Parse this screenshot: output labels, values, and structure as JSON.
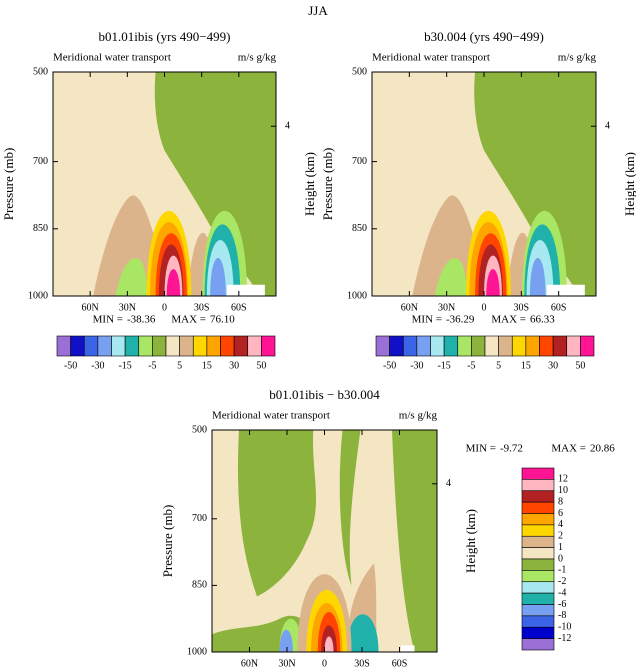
{
  "title": "JJA",
  "chart_data": [
    {
      "type": "contour",
      "title": "b01.01ibis (yrs 490−499)",
      "left_string": "Meridional water transport",
      "right_string": "m/s g/kg",
      "ylabel": "Pressure (mb)",
      "y2label": "Height (km)",
      "xlim": [
        90,
        -90
      ],
      "xticks": [
        {
          "value": 60,
          "label": "60N"
        },
        {
          "value": 30,
          "label": "30N"
        },
        0,
        {
          "value": -30,
          "label": "30S"
        },
        {
          "value": -60,
          "label": "60S"
        }
      ],
      "ylim": [
        1000,
        500
      ],
      "yticks": [
        500,
        700,
        850,
        1000
      ],
      "y2ticks": [
        4
      ],
      "min_label": "MIN =",
      "min": -38.36,
      "max_label": "MAX =",
      "max": {
        "value": 76.1,
        "label": "76.10"
      },
      "colorbar": {
        "colors": [
          "#9a6fd6",
          "#1010c8",
          "#3c64e6",
          "#78a0f0",
          "#a8e8f0",
          "#20b2aa",
          "#a8e664",
          "#8cb43c",
          "#f5e6c3",
          "#dcb48c",
          "#ffd700",
          "#ffa500",
          "#ff4500",
          "#b22222",
          "#ffb6c1",
          "#ff1493"
        ],
        "labels": [
          -50,
          -30,
          -15,
          -5,
          5,
          15,
          30,
          50
        ]
      }
    },
    {
      "type": "contour",
      "title": "b30.004 (yrs 490−499)",
      "left_string": "Meridional water transport",
      "right_string": "m/s g/kg",
      "ylabel": "Pressure (mb)",
      "y2label": "Height (km)",
      "xlim": [
        90,
        -90
      ],
      "xticks": [
        {
          "value": 60,
          "label": "60N"
        },
        {
          "value": 30,
          "label": "30N"
        },
        0,
        {
          "value": -30,
          "label": "30S"
        },
        {
          "value": -60,
          "label": "60S"
        }
      ],
      "ylim": [
        1000,
        500
      ],
      "yticks": [
        500,
        700,
        850,
        1000
      ],
      "y2ticks": [
        4
      ],
      "min_label": "MIN =",
      "min": -36.29,
      "max_label": "MAX =",
      "max": 66.33,
      "colorbar": {
        "colors": [
          "#9a6fd6",
          "#1010c8",
          "#3c64e6",
          "#78a0f0",
          "#a8e8f0",
          "#20b2aa",
          "#a8e664",
          "#8cb43c",
          "#f5e6c3",
          "#dcb48c",
          "#ffd700",
          "#ffa500",
          "#ff4500",
          "#b22222",
          "#ffb6c1",
          "#ff1493"
        ],
        "labels": [
          -50,
          -30,
          -15,
          -5,
          5,
          15,
          30,
          50
        ]
      }
    },
    {
      "type": "contour",
      "title": "b01.01ibis − b30.004",
      "left_string": "Meridional water transport",
      "right_string": "m/s g/kg",
      "ylabel": "Pressure (mb)",
      "y2label": "Height (km)",
      "xlim": [
        90,
        -90
      ],
      "xticks": [
        {
          "value": 60,
          "label": "60N"
        },
        {
          "value": 30,
          "label": "30N"
        },
        0,
        {
          "value": -30,
          "label": "30S"
        },
        {
          "value": -60,
          "label": "60S"
        }
      ],
      "ylim": [
        1000,
        500
      ],
      "yticks": [
        500,
        700,
        850,
        1000
      ],
      "y2ticks": [
        4
      ],
      "min_label": "MIN =",
      "min": -9.72,
      "max_label": "MAX =",
      "max": 20.86,
      "colorbar": {
        "colors": [
          "#ff1493",
          "#ffb6c1",
          "#b22222",
          "#ff4500",
          "#ffa500",
          "#ffd700",
          "#dcb48c",
          "#f5e6c3",
          "#8cb43c",
          "#a8e664",
          "#a8e8f0",
          "#20b2aa",
          "#78a0f0",
          "#3c64e6",
          "#0000cd",
          "#9a6fd6"
        ],
        "labels": [
          12,
          10,
          8,
          6,
          4,
          2,
          1,
          0,
          -1,
          -2,
          -4,
          -6,
          -8,
          -10,
          -12
        ]
      }
    }
  ]
}
